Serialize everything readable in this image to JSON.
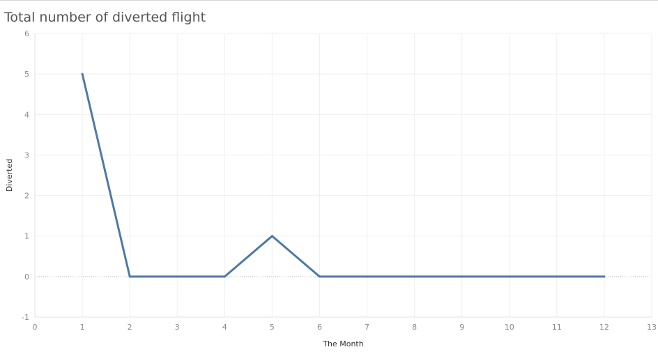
{
  "chart_data": {
    "type": "line",
    "title": "Total number of diverted flight",
    "xlabel": "The Month",
    "ylabel": "Diverted",
    "xlim": [
      0,
      13
    ],
    "ylim": [
      -1,
      6
    ],
    "x_ticks": [
      0,
      1,
      2,
      3,
      4,
      5,
      6,
      7,
      8,
      9,
      10,
      11,
      12,
      13
    ],
    "y_ticks": [
      -1,
      0,
      1,
      2,
      3,
      4,
      5,
      6
    ],
    "grid": true,
    "series": [
      {
        "color": "#4e79a7",
        "x": [
          1,
          2,
          3,
          4,
          5,
          6,
          7,
          8,
          9,
          10,
          11,
          12
        ],
        "y": [
          5,
          0,
          0,
          0,
          1,
          0,
          0,
          0,
          0,
          0,
          0,
          0
        ]
      }
    ]
  }
}
